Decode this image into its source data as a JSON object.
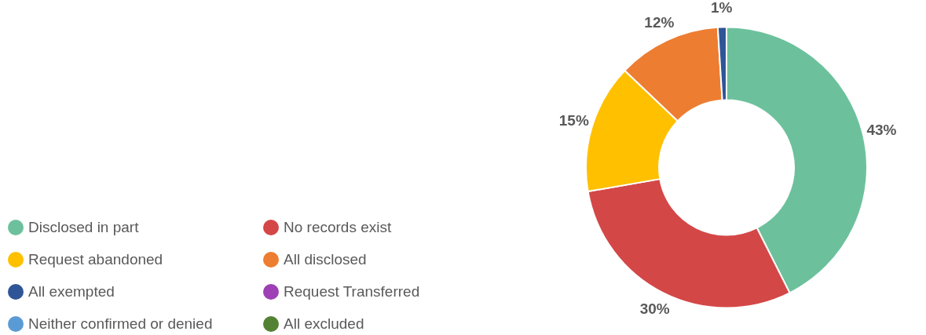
{
  "chart_data": {
    "type": "donut",
    "categories": [
      "Disclosed in part",
      "No records exist",
      "Request abandoned",
      "All disclosed",
      "All exempted",
      "Request Transferred",
      "Neither confirmed or denied",
      "All excluded"
    ],
    "values": [
      43,
      30,
      15,
      12,
      1,
      0,
      0,
      0
    ],
    "value_labels": [
      "43%",
      "30%",
      "15%",
      "12%",
      "1%",
      null,
      null,
      null
    ],
    "colors": [
      "#6cc19c",
      "#d44747",
      "#ffc000",
      "#ed7d31",
      "#2f5597",
      "#9e3fb5",
      "#5b9bd5",
      "#548235"
    ],
    "legend": "left"
  }
}
